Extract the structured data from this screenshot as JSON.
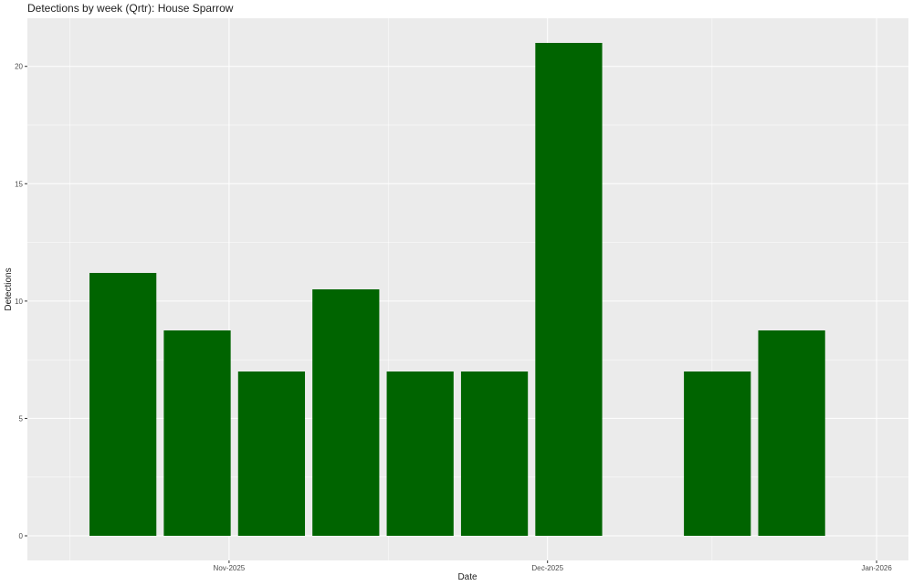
{
  "chart_data": {
    "type": "bar",
    "title": "Detections by week (Qrtr): House Sparrow",
    "x_label": "Date",
    "y_label": "Detections",
    "x": [
      "2025-10-22",
      "2025-10-29",
      "2025-11-05",
      "2025-11-12",
      "2025-11-19",
      "2025-11-26",
      "2025-12-03",
      "2025-12-17",
      "2025-12-24"
    ],
    "values": [
      11.2,
      8.75,
      7,
      10.5,
      7,
      7,
      21,
      7,
      8.75
    ],
    "color": "#006400",
    "xlim": [
      "2025-10-13",
      "2026-01-04"
    ],
    "xticks": [
      {
        "value": "2025-11-01",
        "label": "Nov-2025"
      },
      {
        "value": "2025-12-01",
        "label": "Dec-2025"
      },
      {
        "value": "2026-01-01",
        "label": "Jan-2026"
      }
    ],
    "ylim": [
      -1.05,
      22.05
    ],
    "yticks": [
      0,
      5,
      10,
      15,
      20
    ],
    "grid": true
  }
}
